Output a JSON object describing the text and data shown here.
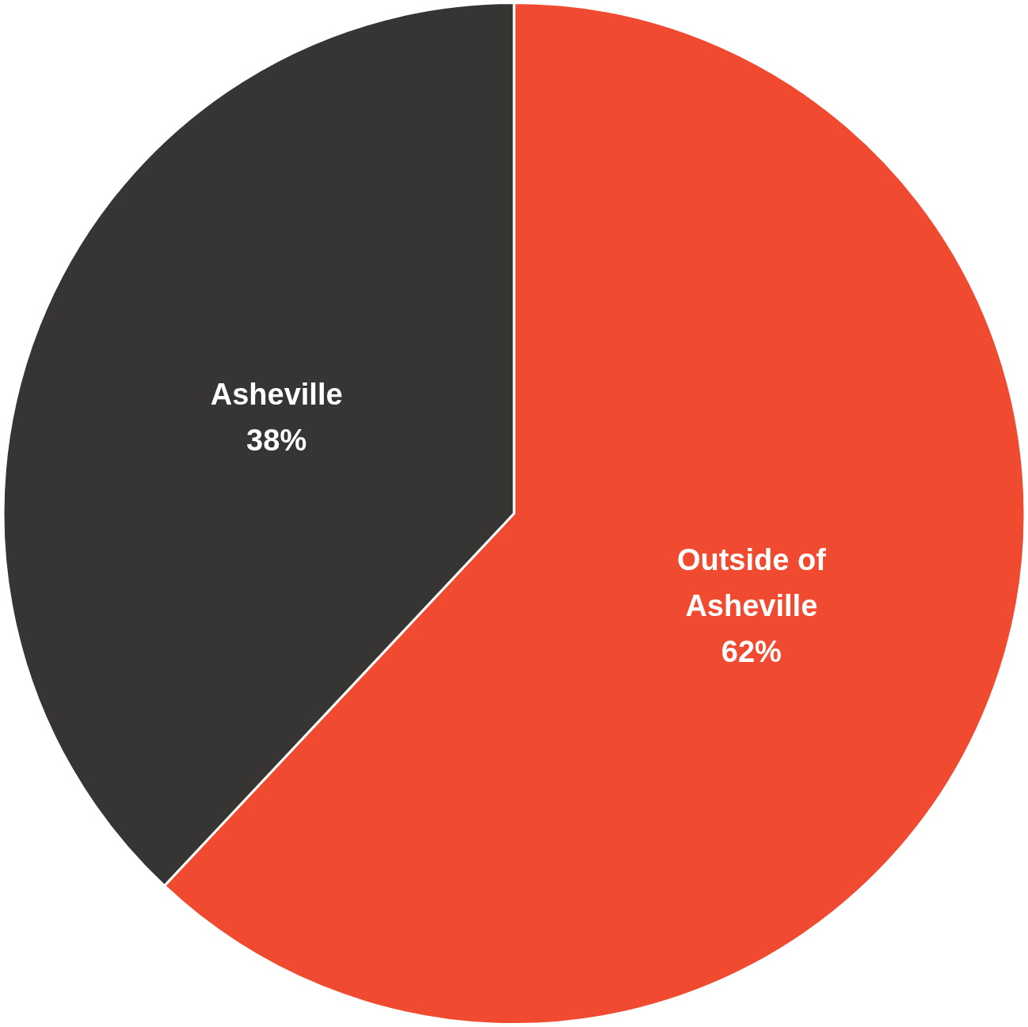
{
  "chart_data": {
    "type": "pie",
    "categories": [
      "Outside of Asheville",
      "Asheville"
    ],
    "values": [
      62,
      38
    ],
    "colors": [
      "#f04b30",
      "#363533"
    ],
    "value_labels": [
      "62%",
      "38%"
    ],
    "legend": false
  }
}
